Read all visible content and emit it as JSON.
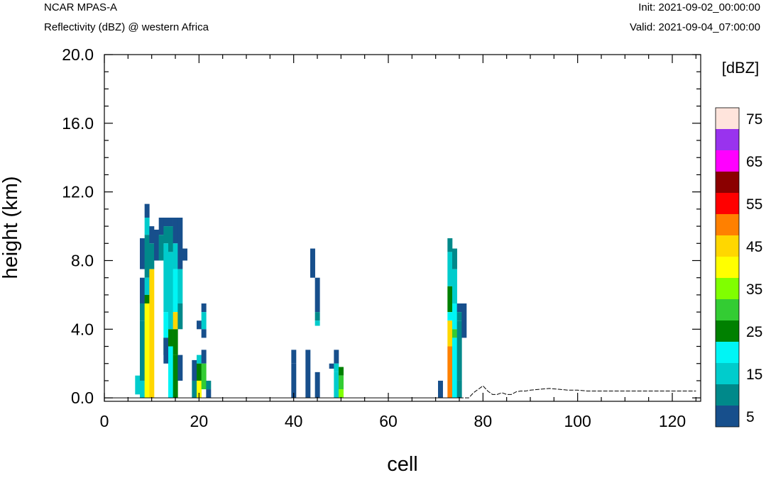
{
  "header": {
    "title": "NCAR MPAS-A",
    "subtitle": "Reflectivity (dBZ) @ western Africa",
    "init": "Init: 2021-09-02_00:00:00",
    "valid": "Valid: 2021-09-04_07:00:00"
  },
  "chart_data": {
    "type": "heatmap",
    "xlabel": "cell",
    "ylabel": "height (km)",
    "xlim": [
      0,
      126
    ],
    "ylim": [
      -0.2,
      20.0
    ],
    "x_ticks": [
      0,
      20,
      40,
      60,
      80,
      100,
      120
    ],
    "x_tick_labels": [
      "0",
      "20",
      "40",
      "60",
      "80",
      "100",
      "120"
    ],
    "y_ticks": [
      0,
      4,
      8,
      12,
      16,
      20
    ],
    "y_tick_labels": [
      "0.0",
      "4.0",
      "8.0",
      "12.0",
      "16.0",
      "20.0"
    ],
    "grid": false,
    "colorbar": {
      "unit_label": "[dBZ]",
      "levels": [
        5,
        10,
        15,
        20,
        25,
        30,
        35,
        40,
        45,
        50,
        55,
        60,
        65,
        70,
        75
      ],
      "colors": [
        "#174f8c",
        "#00898a",
        "#00cccc",
        "#00f5f5",
        "#008000",
        "#33cc33",
        "#80ff00",
        "#ffff00",
        "#ffd700",
        "#ff8000",
        "#ff0000",
        "#8b0000",
        "#ff00ff",
        "#9933ee",
        "#ffe4dc"
      ],
      "tick_labels": [
        "5",
        "15",
        "25",
        "35",
        "45",
        "55",
        "65",
        "75"
      ]
    },
    "terrain": {
      "x": [
        75,
        76,
        77,
        78,
        79,
        80,
        81,
        82,
        83,
        84,
        85,
        86,
        87,
        88,
        89,
        90,
        92,
        94,
        96,
        98,
        100,
        102,
        104,
        106,
        108,
        110,
        112,
        114,
        116,
        118,
        120,
        122,
        125
      ],
      "y": [
        0,
        0,
        0,
        0.3,
        0.5,
        0.7,
        0.4,
        0.2,
        0.2,
        0.3,
        0.2,
        0.2,
        0.35,
        0.4,
        0.4,
        0.45,
        0.5,
        0.55,
        0.5,
        0.45,
        0.45,
        0.4,
        0.4,
        0.4,
        0.4,
        0.4,
        0.4,
        0.4,
        0.4,
        0.4,
        0.4,
        0.4,
        0.4
      ]
    },
    "cells": [
      {
        "x": 7,
        "z": [
          [
            0.2,
            1.3,
            3
          ]
        ]
      },
      {
        "x": 8,
        "z": [
          [
            7.5,
            9.3,
            1
          ],
          [
            5.5,
            7.0,
            1
          ],
          [
            4.5,
            5.5,
            2
          ],
          [
            1.0,
            4.5,
            2
          ],
          [
            0.0,
            1.0,
            3
          ]
        ]
      },
      {
        "x": 9,
        "z": [
          [
            10.5,
            11.3,
            1
          ],
          [
            9.5,
            10.5,
            3
          ],
          [
            8.0,
            9.5,
            2
          ],
          [
            7.0,
            8.0,
            2
          ],
          [
            6.0,
            7.0,
            3
          ],
          [
            5.5,
            6.0,
            5
          ],
          [
            0.0,
            5.5,
            8
          ]
        ]
      },
      {
        "x": 10,
        "z": [
          [
            9.0,
            10.0,
            1
          ],
          [
            7.5,
            9.0,
            2
          ],
          [
            0.0,
            7.5,
            9
          ]
        ]
      },
      {
        "x": 11,
        "z": [
          [
            8.0,
            9.8,
            1
          ]
        ]
      },
      {
        "x": 12,
        "z": [
          [
            9.5,
            10.5,
            1
          ],
          [
            8.0,
            9.5,
            2
          ]
        ]
      },
      {
        "x": 13,
        "z": [
          [
            10.0,
            10.5,
            1
          ],
          [
            9.0,
            10.0,
            2
          ],
          [
            5.0,
            9.0,
            3
          ],
          [
            3.5,
            5.0,
            4
          ],
          [
            2.5,
            3.5,
            5
          ],
          [
            2.0,
            3.5,
            1
          ]
        ]
      },
      {
        "x": 14,
        "z": [
          [
            10.0,
            10.5,
            1
          ],
          [
            8.5,
            10.0,
            2
          ],
          [
            4.0,
            8.5,
            3
          ],
          [
            3.0,
            4.0,
            5
          ],
          [
            0.0,
            3.0,
            4
          ]
        ]
      },
      {
        "x": 15,
        "z": [
          [
            9.0,
            10.5,
            1
          ],
          [
            7.5,
            9.0,
            3
          ],
          [
            5.0,
            7.5,
            4
          ],
          [
            4.0,
            5.0,
            9
          ],
          [
            2.5,
            4.0,
            5
          ],
          [
            0.0,
            2.5,
            5
          ]
        ]
      },
      {
        "x": 16,
        "z": [
          [
            7.5,
            10.5,
            1
          ],
          [
            5.5,
            7.5,
            3
          ],
          [
            4.0,
            5.5,
            2
          ],
          [
            1.0,
            2.5,
            1
          ]
        ]
      },
      {
        "x": 17,
        "z": [
          [
            8.0,
            8.7,
            1
          ]
        ]
      },
      {
        "x": 19,
        "z": [
          [
            1.0,
            2.2,
            1
          ],
          [
            0.0,
            1.0,
            2
          ]
        ]
      },
      {
        "x": 20,
        "z": [
          [
            4.0,
            4.5,
            1
          ],
          [
            2.0,
            2.5,
            3
          ],
          [
            1.0,
            2.0,
            5
          ],
          [
            0.0,
            1.0,
            8
          ]
        ]
      },
      {
        "x": 21,
        "z": [
          [
            5.0,
            5.5,
            1
          ],
          [
            4.0,
            5.0,
            3
          ],
          [
            3.5,
            4.0,
            1
          ],
          [
            2.0,
            2.8,
            1
          ],
          [
            0.5,
            2.0,
            6
          ]
        ]
      },
      {
        "x": 22,
        "z": [
          [
            0.5,
            1.0,
            2
          ],
          [
            0.0,
            0.5,
            1
          ]
        ]
      },
      {
        "x": 40,
        "z": [
          [
            2.0,
            2.8,
            1
          ],
          [
            0.0,
            2.0,
            1
          ]
        ]
      },
      {
        "x": 43,
        "z": [
          [
            0.0,
            2.8,
            1
          ]
        ]
      },
      {
        "x": 44,
        "z": [
          [
            7.0,
            8.7,
            1
          ]
        ]
      },
      {
        "x": 45,
        "z": [
          [
            5.0,
            7.0,
            1
          ],
          [
            4.5,
            5.0,
            2
          ],
          [
            4.2,
            4.5,
            3
          ],
          [
            0.0,
            1.5,
            1
          ]
        ]
      },
      {
        "x": 48,
        "z": [
          [
            1.7,
            2.0,
            1
          ]
        ]
      },
      {
        "x": 49,
        "z": [
          [
            2.0,
            2.8,
            1
          ],
          [
            1.5,
            2.0,
            3
          ],
          [
            0.0,
            1.5,
            3
          ]
        ]
      },
      {
        "x": 50,
        "z": [
          [
            1.3,
            1.8,
            5
          ],
          [
            0.5,
            1.3,
            6
          ],
          [
            0.0,
            0.5,
            7
          ]
        ]
      },
      {
        "x": 71,
        "z": [
          [
            0.0,
            1.0,
            1
          ]
        ]
      },
      {
        "x": 73,
        "z": [
          [
            8.5,
            9.3,
            2
          ],
          [
            6.5,
            8.5,
            3
          ],
          [
            5.0,
            6.5,
            5
          ],
          [
            4.5,
            5.0,
            4
          ],
          [
            3.0,
            4.5,
            9
          ],
          [
            0.0,
            3.0,
            10
          ]
        ]
      },
      {
        "x": 74,
        "z": [
          [
            7.5,
            8.7,
            2
          ],
          [
            5.5,
            7.5,
            3
          ],
          [
            4.0,
            5.5,
            4
          ],
          [
            3.5,
            4.0,
            6
          ],
          [
            0.0,
            3.5,
            4
          ]
        ]
      },
      {
        "x": 75,
        "z": [
          [
            5.0,
            5.5,
            1
          ],
          [
            4.5,
            5.0,
            2
          ],
          [
            1.0,
            4.5,
            2
          ],
          [
            0.0,
            1.0,
            2
          ]
        ]
      },
      {
        "x": 76,
        "z": [
          [
            3.5,
            5.5,
            1
          ]
        ]
      }
    ]
  }
}
